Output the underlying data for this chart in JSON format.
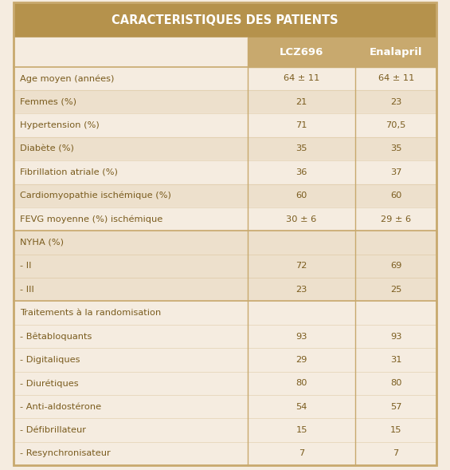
{
  "title": "CARACTERISTIQUES DES PATIENTS",
  "title_bg": "#b5924c",
  "title_color": "#ffffff",
  "header_bg": "#c8a96e",
  "header_color": "#ffffff",
  "col1_header": "LCZ696",
  "col2_header": "Enalapril",
  "row_bg_light": "#f5ece0",
  "row_bg_medium": "#ede0cc",
  "body_text_color": "#7a5c1e",
  "outer_bg": "#f5ece0",
  "rows": [
    {
      "label": "Age moyen (années)",
      "v1": "64 ± 11",
      "v2": "64 ± 11",
      "indent": 0,
      "shade": false
    },
    {
      "label": "Femmes (%)",
      "v1": "21",
      "v2": "23",
      "indent": 0,
      "shade": true
    },
    {
      "label": "Hypertension (%)",
      "v1": "71",
      "v2": "70,5",
      "indent": 0,
      "shade": false
    },
    {
      "label": "Diabète (%)",
      "v1": "35",
      "v2": "35",
      "indent": 0,
      "shade": true
    },
    {
      "label": "Fibrillation atriale (%)",
      "v1": "36",
      "v2": "37",
      "indent": 0,
      "shade": false
    },
    {
      "label": "Cardiomyopathie ischémique (%)",
      "v1": "60",
      "v2": "60",
      "indent": 0,
      "shade": true
    },
    {
      "label": "FEVG moyenne (%) ischémique",
      "v1": "30 ± 6",
      "v2": "29 ± 6",
      "indent": 0,
      "shade": false
    },
    {
      "label": "NYHA (%)",
      "v1": "",
      "v2": "",
      "indent": 0,
      "shade": true,
      "group_header": true
    },
    {
      "label": "- II",
      "v1": "72",
      "v2": "69",
      "indent": 1,
      "shade": true
    },
    {
      "label": "- III",
      "v1": "23",
      "v2": "25",
      "indent": 1,
      "shade": true
    },
    {
      "label": "Traitements à la randomisation",
      "v1": "",
      "v2": "",
      "indent": 0,
      "shade": false,
      "group_header": true
    },
    {
      "label": "- Bêtabloquants",
      "v1": "93",
      "v2": "93",
      "indent": 1,
      "shade": false
    },
    {
      "label": "- Digitaliques",
      "v1": "29",
      "v2": "31",
      "indent": 1,
      "shade": false
    },
    {
      "label": "- Diurétiques",
      "v1": "80",
      "v2": "80",
      "indent": 1,
      "shade": false
    },
    {
      "label": "- Anti-aldostérone",
      "v1": "54",
      "v2": "57",
      "indent": 1,
      "shade": false
    },
    {
      "label": "- Défibrillateur",
      "v1": "15",
      "v2": "15",
      "indent": 1,
      "shade": false
    },
    {
      "label": "- Resynchronisateur",
      "v1": "7",
      "v2": "7",
      "indent": 1,
      "shade": false
    }
  ],
  "separator_rows": [
    7,
    10
  ],
  "col_divider_color": "#c8a96e",
  "border_color": "#c8a96e"
}
